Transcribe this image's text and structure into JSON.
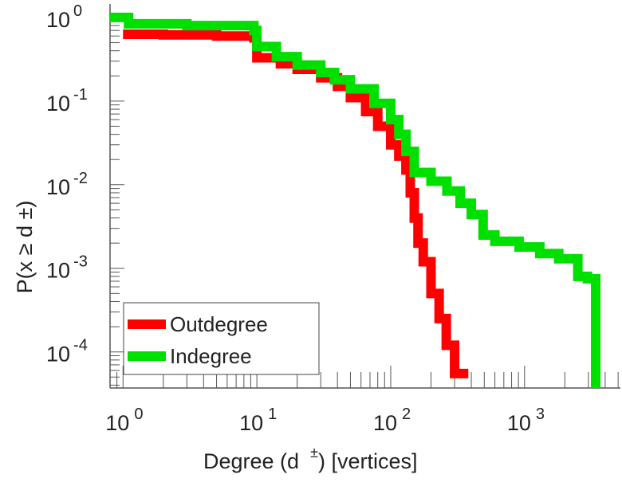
{
  "chart_data": {
    "type": "line",
    "title": "",
    "xlabel": "Degree (d ±) [vertices]",
    "xlabel_main": "Degree (d",
    "xlabel_sup": "±",
    "xlabel_tail": ") [vertices]",
    "ylabel": "P(x ≥ d ±)",
    "ylabel_main": "P(x ≥ d",
    "ylabel_sup": "±",
    "ylabel_tail": ")",
    "xscale": "log",
    "yscale": "log",
    "xlim": [
      0.8,
      5200
    ],
    "ylim": [
      3.7e-05,
      1.45
    ],
    "xticks": [
      {
        "base": "10",
        "exp": "0",
        "value": 1
      },
      {
        "base": "10",
        "exp": "1",
        "value": 10
      },
      {
        "base": "10",
        "exp": "2",
        "value": 100
      },
      {
        "base": "10",
        "exp": "3",
        "value": 1000
      }
    ],
    "yticks": [
      {
        "base": "10",
        "exp": "0",
        "value": 1
      },
      {
        "base": "10",
        "exp": "-1",
        "value": 0.1
      },
      {
        "base": "10",
        "exp": "-2",
        "value": 0.01
      },
      {
        "base": "10",
        "exp": "-3",
        "value": 0.001
      },
      {
        "base": "10",
        "exp": "-4",
        "value": 0.0001
      }
    ],
    "legend_position": "bottom-left",
    "series": [
      {
        "name": "Outdegree",
        "color": "#ff0000",
        "x": [
          1,
          2,
          5,
          9.5,
          10,
          15,
          20,
          30,
          40,
          50,
          65,
          80,
          100,
          115,
          130,
          140,
          150,
          160,
          175,
          200,
          230,
          260,
          300,
          380
        ],
        "y": [
          0.63,
          0.62,
          0.6,
          0.57,
          0.33,
          0.28,
          0.24,
          0.19,
          0.15,
          0.11,
          0.075,
          0.05,
          0.03,
          0.022,
          0.015,
          0.008,
          0.004,
          0.002,
          0.0012,
          0.0005,
          0.00025,
          0.00012,
          5.5e-05,
          5.5e-05
        ]
      },
      {
        "name": "Indegree",
        "color": "#00e000",
        "x": [
          0.8,
          1.1,
          3,
          9.5,
          10,
          14,
          20,
          30,
          38,
          50,
          75,
          100,
          115,
          130,
          150,
          200,
          263,
          330,
          400,
          490,
          600,
          910,
          1300,
          1800,
          2500,
          2950,
          3400
        ],
        "y": [
          1.0,
          0.84,
          0.8,
          0.7,
          0.45,
          0.34,
          0.27,
          0.22,
          0.18,
          0.14,
          0.094,
          0.06,
          0.04,
          0.025,
          0.014,
          0.011,
          0.0084,
          0.006,
          0.0044,
          0.0025,
          0.0021,
          0.0018,
          0.0015,
          0.0013,
          0.0008,
          0.00075,
          3.7e-05
        ]
      }
    ]
  }
}
